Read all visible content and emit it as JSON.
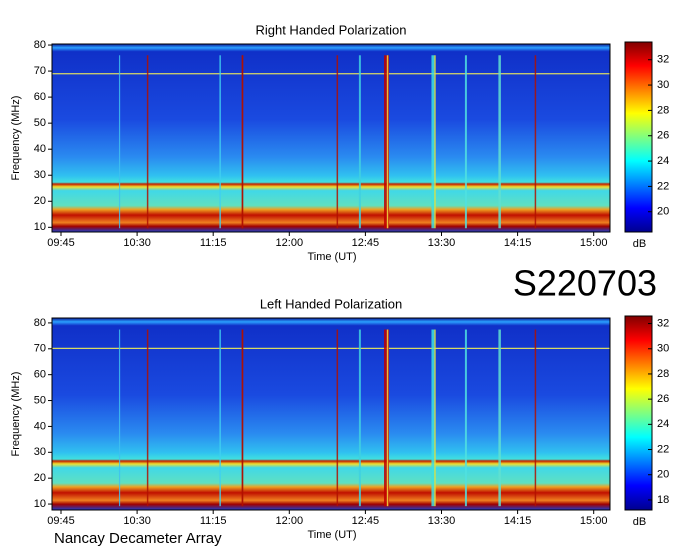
{
  "chart_data": [
    {
      "type": "heatmap",
      "title": "Right Handed Polarization",
      "x_label": "Time (UT)",
      "y_label": "Frequency (MHz)",
      "time_ticks": [
        "09:45",
        "10:30",
        "11:15",
        "12:00",
        "12:45",
        "13:30",
        "14:15",
        "15:00"
      ],
      "ylim": [
        8.2,
        80.4
      ],
      "yticks": [
        10,
        20,
        30,
        40,
        50,
        60,
        70,
        80
      ],
      "colormap": "jet",
      "clim": [
        18.4,
        33.4
      ],
      "cticks": [
        20,
        22,
        24,
        26,
        28,
        30,
        32
      ],
      "colorbar_label": "dB"
    },
    {
      "type": "heatmap",
      "title": "Left Handed Polarization",
      "x_label": "Time (UT)",
      "y_label": "Frequency (MHz)",
      "time_ticks": [
        "09:45",
        "10:30",
        "11:15",
        "12:00",
        "12:45",
        "13:30",
        "14:15",
        "15:00"
      ],
      "ylim": [
        7.7,
        81.9
      ],
      "yticks": [
        10,
        20,
        30,
        40,
        50,
        60,
        70,
        80
      ],
      "colormap": "jet",
      "clim": [
        17.2,
        32.6
      ],
      "cticks": [
        18,
        20,
        22,
        24,
        26,
        28,
        30,
        32
      ],
      "colorbar_label": "dB"
    }
  ],
  "station_id": "S220703",
  "footer": "Nancay Decameter Array"
}
